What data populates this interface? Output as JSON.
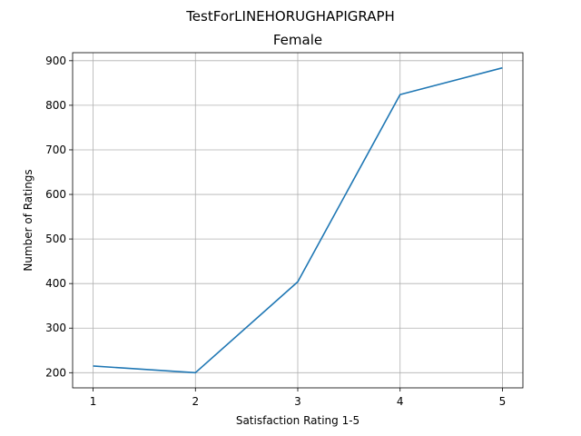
{
  "chart_data": {
    "type": "line",
    "suptitle": "TestForLINEHORUGHAPIGRAPH",
    "title": "Female",
    "xlabel": "Satisfaction Rating 1-5",
    "ylabel": "Number of Ratings",
    "x": [
      1,
      2,
      3,
      4,
      5
    ],
    "y": [
      215,
      200,
      404,
      824,
      884
    ],
    "xticks": [
      "1",
      "2",
      "3",
      "4",
      "5"
    ],
    "yticks": [
      200,
      300,
      400,
      500,
      600,
      700,
      800,
      900
    ],
    "xlim": [
      0.8,
      5.2
    ],
    "ylim": [
      166,
      918
    ],
    "grid": true,
    "line_color": "#1f77b4"
  }
}
